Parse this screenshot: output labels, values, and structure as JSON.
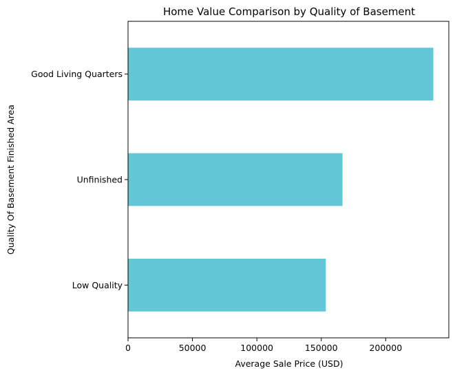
{
  "chart_data": {
    "type": "bar",
    "orientation": "horizontal",
    "title": "Home Value Comparison by Quality of Basement",
    "xlabel": "Average Sale Price (USD)",
    "ylabel": "Quality Of Basement Finished Area",
    "categories": [
      "Good Living Quarters",
      "Unfinished",
      "Low Quality"
    ],
    "values": [
      237000,
      166500,
      153500
    ],
    "xlim": [
      0,
      249000
    ],
    "xticks": [
      0,
      50000,
      100000,
      150000,
      200000
    ],
    "grid": false,
    "legend": "none",
    "bar_color": "#62C6D6"
  }
}
